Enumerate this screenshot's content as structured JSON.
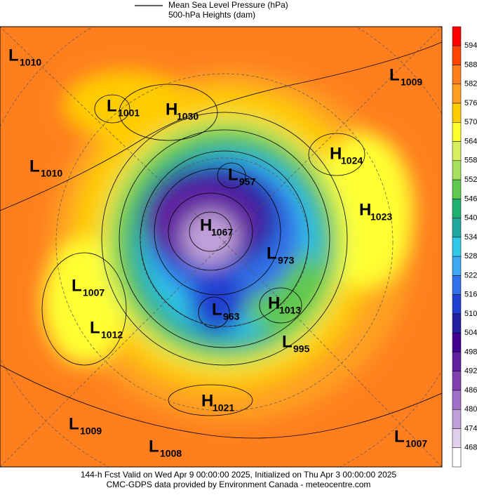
{
  "legend": {
    "line1": "Mean Sea Level Pressure (hPa)",
    "line2": "500-hPa Heights (dam)"
  },
  "colorbar": {
    "ticks": [
      594,
      588,
      582,
      576,
      570,
      564,
      558,
      552,
      546,
      540,
      534,
      528,
      522,
      516,
      510,
      504,
      498,
      492,
      486,
      480,
      474,
      468
    ],
    "colors": [
      "#ff0000",
      "#ff4500",
      "#ff7f1e",
      "#ffa020",
      "#ffcc00",
      "#ffff30",
      "#d8f060",
      "#a8e060",
      "#60c850",
      "#20b070",
      "#20a8a0",
      "#30c8e8",
      "#40a8f0",
      "#3070e8",
      "#2040d0",
      "#2020a0",
      "#400090",
      "#6020a0",
      "#8040b0",
      "#a070c8",
      "#c0a0d8",
      "#e0d0ec",
      "#ffffff"
    ]
  },
  "centers": [
    {
      "kind": "L",
      "value": 1010
    },
    {
      "kind": "L",
      "value": 1001
    },
    {
      "kind": "H",
      "value": 1030
    },
    {
      "kind": "L",
      "value": 1009
    },
    {
      "kind": "H",
      "value": 1024
    },
    {
      "kind": "L",
      "value": 1010
    },
    {
      "kind": "L",
      "value": 957
    },
    {
      "kind": "H",
      "value": 1023
    },
    {
      "kind": "H",
      "value": 1067
    },
    {
      "kind": "L",
      "value": 973
    },
    {
      "kind": "L",
      "value": 1007
    },
    {
      "kind": "H",
      "value": 1013
    },
    {
      "kind": "L",
      "value": 963
    },
    {
      "kind": "L",
      "value": 1012
    },
    {
      "kind": "L",
      "value": 995
    },
    {
      "kind": "H",
      "value": 1021
    },
    {
      "kind": "L",
      "value": 1009
    },
    {
      "kind": "L",
      "value": 1008
    },
    {
      "kind": "L",
      "value": 1007
    }
  ],
  "footer": {
    "line1": "144-h Fcst Valid on Wed Apr  9 00:00:00 2025, Initialized on Thu Apr  3 00:00:00 2025",
    "line2": "CMC-GDPS data provided by Environment Canada - meteocentre.com"
  }
}
